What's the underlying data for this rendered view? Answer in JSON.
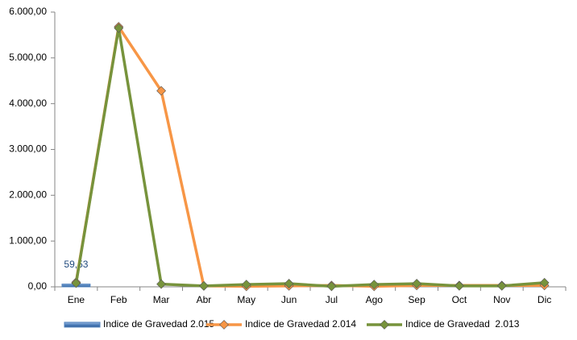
{
  "chart_data": {
    "type": "combo",
    "categories": [
      "Ene",
      "Feb",
      "Mar",
      "Abr",
      "May",
      "Jun",
      "Jul",
      "Ago",
      "Sep",
      "Oct",
      "Nov",
      "Dic"
    ],
    "ylim": [
      0,
      6000
    ],
    "yticks": [
      {
        "value": 0,
        "label": "0,00"
      },
      {
        "value": 1000,
        "label": "1.000,00"
      },
      {
        "value": 2000,
        "label": "2.000,00"
      },
      {
        "value": 3000,
        "label": "3.000,00"
      },
      {
        "value": 4000,
        "label": "4.000,00"
      },
      {
        "value": 5000,
        "label": "5.000,00"
      },
      {
        "value": 6000,
        "label": "6.000,00"
      }
    ],
    "grid": false,
    "legend": "bottom",
    "series": [
      {
        "name": "Indice de Gravedad 2.015",
        "type": "bar",
        "color": "#4f81bd",
        "values": [
          59.53,
          null,
          null,
          null,
          null,
          null,
          null,
          null,
          null,
          null,
          null,
          null
        ],
        "value_labels": [
          "59,53",
          null,
          null,
          null,
          null,
          null,
          null,
          null,
          null,
          null,
          null,
          null
        ]
      },
      {
        "name": "Indice de Gravedad 2.014",
        "type": "line",
        "color": "#f79646",
        "values": [
          100,
          5680,
          4280,
          20,
          10,
          20,
          30,
          10,
          30,
          30,
          30,
          30
        ]
      },
      {
        "name": "Indice de Gravedad  2.013",
        "type": "line",
        "color": "#77933c",
        "values": [
          80,
          5650,
          60,
          20,
          50,
          70,
          10,
          50,
          70,
          20,
          20,
          90
        ]
      }
    ]
  }
}
